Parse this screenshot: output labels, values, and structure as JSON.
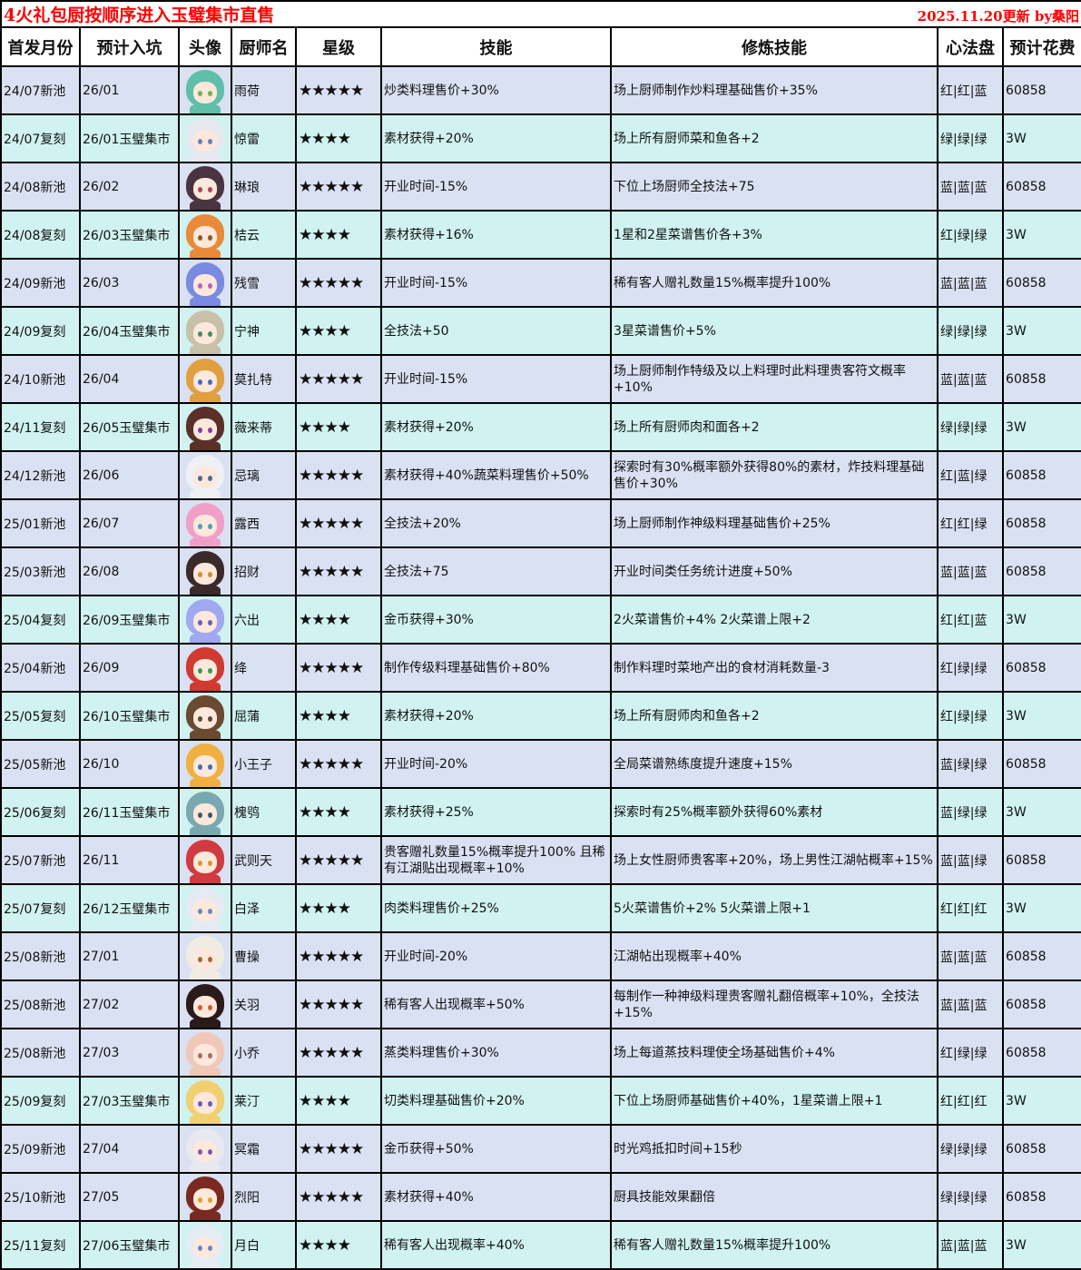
{
  "title": "4火礼包厨按顺序进入玉璧集市直售",
  "update": "2025.11.20更新 by桑阳",
  "headers": [
    "首发月份",
    "预计入坑",
    "头像",
    "厨师名",
    "星级",
    "技能",
    "修炼技能",
    "心法盘",
    "预计花费"
  ],
  "colors": {
    "new_pool_row": "#d9e1f2",
    "rerun_row": "#d0f2f0",
    "title": "#ff0000"
  },
  "rows": [
    {
      "first": "24/07新池",
      "enter": "26/01",
      "name": "雨荷",
      "stars": "★★★★★",
      "skill": "炒类料理售价+30%",
      "train": "场上厨师制作炒料理基础售价+35%",
      "disc": "红|红|蓝",
      "cost": "60858",
      "type": "new",
      "hair": "#5fbfa8",
      "eye": "#6cb64a"
    },
    {
      "first": "24/07复刻",
      "enter": "26/01玉璧集市",
      "name": "惊雷",
      "stars": "★★★★",
      "skill": "素材获得+20%",
      "train": "场上所有厨师菜和鱼各+2",
      "disc": "绿|绿|绿",
      "cost": "3W",
      "type": "rerun",
      "hair": "#e8e8f0",
      "eye": "#6a7fc8"
    },
    {
      "first": "24/08新池",
      "enter": "26/02",
      "name": "琳琅",
      "stars": "★★★★★",
      "skill": "开业时间-15%",
      "train": "下位上场厨师全技法+75",
      "disc": "蓝|蓝|蓝",
      "cost": "60858",
      "type": "new",
      "hair": "#4a3440",
      "eye": "#b04060"
    },
    {
      "first": "24/08复刻",
      "enter": "26/03玉璧集市",
      "name": "桔云",
      "stars": "★★★★",
      "skill": "素材获得+16%",
      "train": "1星和2星菜谱售价各+3%",
      "disc": "红|绿|绿",
      "cost": "3W",
      "type": "rerun",
      "hair": "#e88a3a",
      "eye": "#8a5a20"
    },
    {
      "first": "24/09新池",
      "enter": "26/03",
      "name": "残雪",
      "stars": "★★★★★",
      "skill": "开业时间-15%",
      "train": "稀有客人赠礼数量15%概率提升100%",
      "disc": "蓝|蓝|蓝",
      "cost": "60858",
      "type": "new",
      "hair": "#7a8ae0",
      "eye": "#c060c0"
    },
    {
      "first": "24/09复刻",
      "enter": "26/04玉璧集市",
      "name": "宁神",
      "stars": "★★★★",
      "skill": "全技法+50",
      "train": "3星菜谱售价+5%",
      "disc": "绿|绿|绿",
      "cost": "3W",
      "type": "rerun",
      "hair": "#c8c0a8",
      "eye": "#4a8a6a"
    },
    {
      "first": "24/10新池",
      "enter": "26/04",
      "name": "莫扎特",
      "stars": "★★★★★",
      "skill": "开业时间-15%",
      "train": "场上厨师制作特级及以上料理时此料理贵客符文概率+10%",
      "disc": "蓝|蓝|蓝",
      "cost": "60858",
      "type": "new",
      "hair": "#e0a040",
      "eye": "#3a70c0"
    },
    {
      "first": "24/11复刻",
      "enter": "26/05玉璧集市",
      "name": "薇来蒂",
      "stars": "★★★★",
      "skill": "素材获得+20%",
      "train": "场上所有厨师肉和面各+2",
      "disc": "绿|绿|绿",
      "cost": "3W",
      "type": "rerun",
      "hair": "#5a3028",
      "eye": "#8040a0"
    },
    {
      "first": "24/12新池",
      "enter": "26/06",
      "name": "忌璃",
      "stars": "★★★★★",
      "skill": "素材获得+40%蔬菜料理售价+50%",
      "train": "探索时有30%概率额外获得80%的素材，炸技料理基础售价+30%",
      "disc": "红|蓝|绿",
      "cost": "60858",
      "type": "new",
      "hair": "#eef0f4",
      "eye": "#4a6a9a"
    },
    {
      "first": "25/01新池",
      "enter": "26/07",
      "name": "露西",
      "stars": "★★★★★",
      "skill": "全技法+20%",
      "train": "场上厨师制作神级料理基础售价+25%",
      "disc": "红|红|绿",
      "cost": "60858",
      "type": "new",
      "hair": "#f0a0c8",
      "eye": "#4aa0c0"
    },
    {
      "first": "25/03新池",
      "enter": "26/08",
      "name": "招财",
      "stars": "★★★★★",
      "skill": "全技法+75",
      "train": "开业时间类任务统计进度+50%",
      "disc": "蓝|蓝|蓝",
      "cost": "60858",
      "type": "new",
      "hair": "#3a2a2a",
      "eye": "#d09030"
    },
    {
      "first": "25/04复刻",
      "enter": "26/09玉璧集市",
      "name": "六出",
      "stars": "★★★★",
      "skill": "金币获得+30%",
      "train": "2火菜谱售价+4% 2火菜谱上限+2",
      "disc": "红|红|蓝",
      "cost": "3W",
      "type": "rerun",
      "hair": "#a0a8f0",
      "eye": "#6a60c0"
    },
    {
      "first": "25/04新池",
      "enter": "26/09",
      "name": "绛",
      "stars": "★★★★★",
      "skill": "制作传级料理基础售价+80%",
      "train": "制作料理时菜地产出的食材消耗数量-3",
      "disc": "红|绿|绿",
      "cost": "60858",
      "type": "new",
      "hair": "#d03a30",
      "eye": "#3a9a60"
    },
    {
      "first": "25/05复刻",
      "enter": "26/10玉璧集市",
      "name": "屈蒲",
      "stars": "★★★★",
      "skill": "素材获得+20%",
      "train": "场上所有厨师肉和鱼各+2",
      "disc": "红|绿|绿",
      "cost": "3W",
      "type": "rerun",
      "hair": "#6a4a30",
      "eye": "#5a4a3a"
    },
    {
      "first": "25/05新池",
      "enter": "26/10",
      "name": "小王子",
      "stars": "★★★★★",
      "skill": "开业时间-20%",
      "train": "全局菜谱熟练度提升速度+15%",
      "disc": "蓝|绿|绿",
      "cost": "60858",
      "type": "new",
      "hair": "#f0b040",
      "eye": "#3a70c0"
    },
    {
      "first": "25/06复刻",
      "enter": "26/11玉璧集市",
      "name": "槐鸮",
      "stars": "★★★★",
      "skill": "素材获得+25%",
      "train": "探索时有25%概率额外获得60%素材",
      "disc": "蓝|绿|绿",
      "cost": "3W",
      "type": "rerun",
      "hair": "#7aa8b0",
      "eye": "#3a5a6a"
    },
    {
      "first": "25/07新池",
      "enter": "26/11",
      "name": "武则天",
      "stars": "★★★★★",
      "skill": "贵客赠礼数量15%概率提升100% 且稀有江湖贴出现概率+10%",
      "train": "场上女性厨师贵客率+20%，场上男性江湖帖概率+15%",
      "disc": "蓝|蓝|绿",
      "cost": "60858",
      "type": "new",
      "hair": "#d03a40",
      "eye": "#d09a30"
    },
    {
      "first": "25/07复刻",
      "enter": "26/12玉璧集市",
      "name": "白泽",
      "stars": "★★★★",
      "skill": "肉类料理售价+25%",
      "train": "5火菜谱售价+2% 5火菜谱上限+1",
      "disc": "红|红|红",
      "cost": "3W",
      "type": "rerun",
      "hair": "#e8eaf2",
      "eye": "#6a8ac0"
    },
    {
      "first": "25/08新池",
      "enter": "27/01",
      "name": "曹操",
      "stars": "★★★★★",
      "skill": "开业时间-20%",
      "train": "江湖帖出现概率+40%",
      "disc": "蓝|蓝|蓝",
      "cost": "60858",
      "type": "new",
      "hair": "#f0ece4",
      "eye": "#a06a3a"
    },
    {
      "first": "25/08新池",
      "enter": "27/02",
      "name": "关羽",
      "stars": "★★★★★",
      "skill": "稀有客人出现概率+50%",
      "train": "每制作一种神级料理贵客赠礼翻倍概率+10%，全技法+15%",
      "disc": "蓝|蓝|蓝",
      "cost": "60858",
      "type": "new",
      "hair": "#2a1a1a",
      "eye": "#d06030"
    },
    {
      "first": "25/08新池",
      "enter": "27/03",
      "name": "小乔",
      "stars": "★★★★★",
      "skill": "蒸类料理售价+30%",
      "train": "场上每道蒸技料理使全场基础售价+4%",
      "disc": "红|绿|绿",
      "cost": "60858",
      "type": "new",
      "hair": "#f0c8b8",
      "eye": "#b06a6a"
    },
    {
      "first": "25/09复刻",
      "enter": "27/03玉璧集市",
      "name": "莱汀",
      "stars": "★★★★",
      "skill": "切类料理基础售价+20%",
      "train": "下位上场厨师基础售价+40%，1星菜谱上限+1",
      "disc": "红|红|红",
      "cost": "3W",
      "type": "rerun",
      "hair": "#f0d070",
      "eye": "#6a5ac0"
    },
    {
      "first": "25/09新池",
      "enter": "27/04",
      "name": "冥霜",
      "stars": "★★★★★",
      "skill": "金币获得+50%",
      "train": "时光鸡抵扣时间+15秒",
      "disc": "绿|绿|绿",
      "cost": "60858",
      "type": "new",
      "hair": "#e8e8f0",
      "eye": "#7a5ab0"
    },
    {
      "first": "25/10新池",
      "enter": "27/05",
      "name": "烈阳",
      "stars": "★★★★★",
      "skill": "素材获得+40%",
      "train": "厨具技能效果翻倍",
      "disc": "绿|绿|绿",
      "cost": "60858",
      "type": "new",
      "hair": "#7a2a20",
      "eye": "#e0a030"
    },
    {
      "first": "25/11复刻",
      "enter": "27/06玉璧集市",
      "name": "月白",
      "stars": "★★★★",
      "skill": "稀有客人出现概率+40%",
      "train": "稀有客人赠礼数量15%概率提升100%",
      "disc": "蓝|蓝|蓝",
      "cost": "3W",
      "type": "rerun",
      "hair": "#e4ecf4",
      "eye": "#6a8ac0"
    }
  ]
}
